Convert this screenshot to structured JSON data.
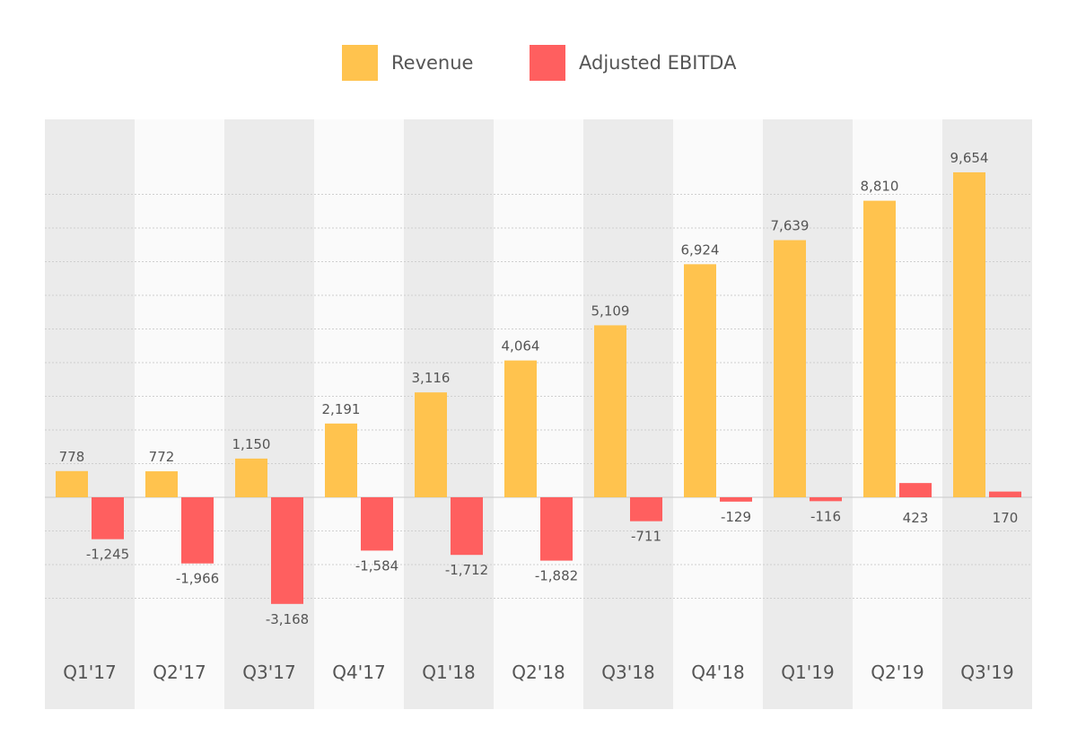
{
  "chart_data": {
    "type": "bar",
    "title": "",
    "xlabel": "",
    "ylabel": "",
    "categories": [
      "Q1'17",
      "Q2'17",
      "Q3'17",
      "Q4'17",
      "Q1'18",
      "Q2'18",
      "Q3'18",
      "Q4'18",
      "Q1'19",
      "Q2'19",
      "Q3'19"
    ],
    "series": [
      {
        "name": "Revenue",
        "color": "#FFC34E",
        "values": [
          778,
          772,
          1150,
          2191,
          3116,
          4064,
          5109,
          6924,
          7639,
          8810,
          9654
        ],
        "labels": [
          "778",
          "772",
          "1,150",
          "2,191",
          "3,116",
          "4,064",
          "5,109",
          "6,924",
          "7,639",
          "8,810",
          "9,654"
        ]
      },
      {
        "name": "Adjusted EBITDA",
        "color": "#FF5F5F",
        "values": [
          -1245,
          -1966,
          -3168,
          -1584,
          -1712,
          -1882,
          -711,
          -129,
          -116,
          423,
          170
        ],
        "labels": [
          "-1,245",
          "-1,966",
          "-3,168",
          "-1,584",
          "-1,712",
          "-1,882",
          "-711",
          "-129",
          "-116",
          "423",
          "170"
        ]
      }
    ],
    "ylim": [
      -4000,
      11000
    ],
    "grid": true,
    "legend_position": "top-center",
    "background_bands": [
      "#EBEBEB",
      "#FAFAFA"
    ]
  }
}
